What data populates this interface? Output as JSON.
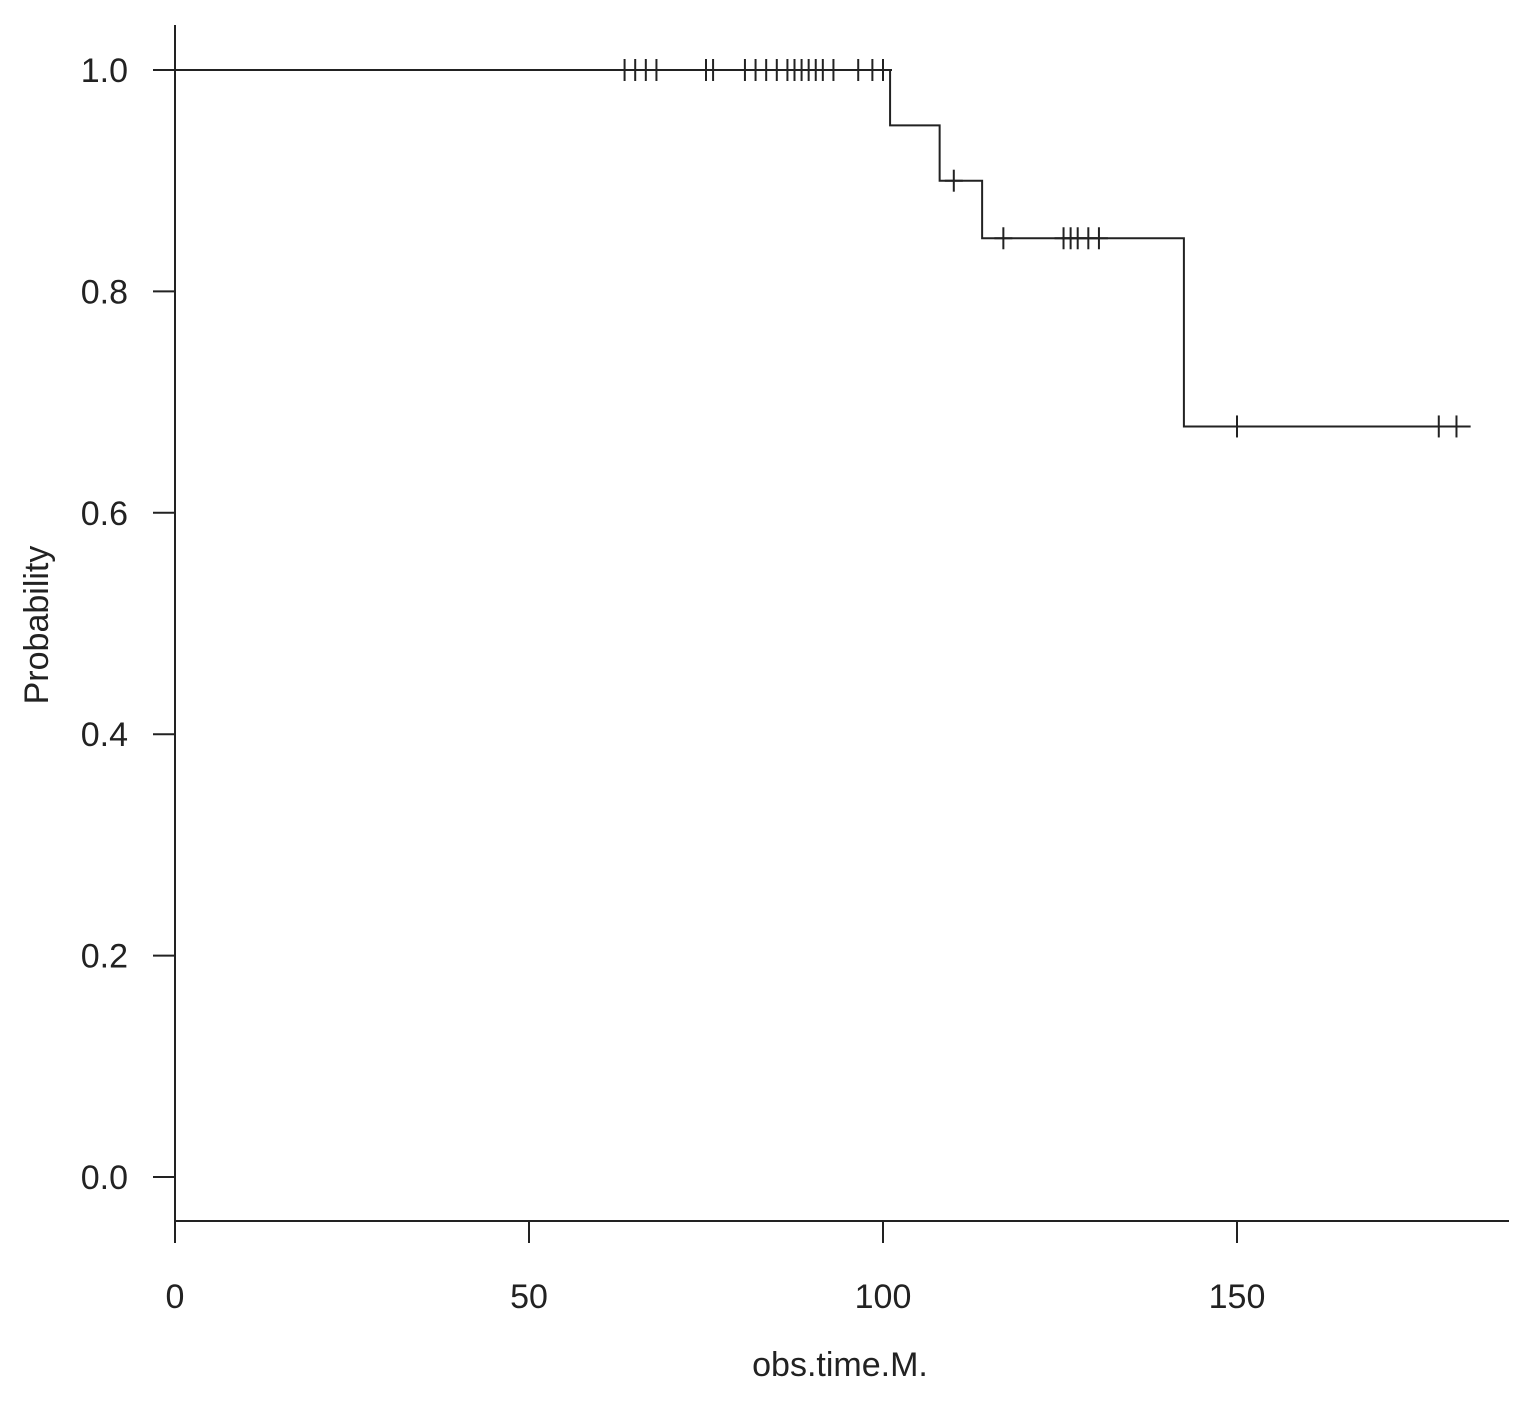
{
  "chart_data": {
    "type": "line",
    "subtype": "kaplan-meier-step",
    "title": "",
    "xlabel": "obs.time.M.",
    "ylabel": "Probability",
    "xlim": [
      0,
      188
    ],
    "ylim": [
      -0.04,
      1.04
    ],
    "x_ticks": [
      0,
      50,
      100,
      150
    ],
    "x_tick_labels": [
      "0",
      "50",
      "100",
      "150"
    ],
    "y_ticks": [
      0.0,
      0.2,
      0.4,
      0.6,
      0.8,
      1.0
    ],
    "y_tick_labels": [
      "0.0",
      "0.2",
      "0.4",
      "0.6",
      "0.8",
      "1.0"
    ],
    "grid": false,
    "legend": "none",
    "line_color": "#222222",
    "series": [
      {
        "steps": [
          {
            "x": 0,
            "y": 1.0
          },
          {
            "x": 101,
            "y": 0.95
          },
          {
            "x": 108,
            "y": 0.9
          },
          {
            "x": 114,
            "y": 0.848
          },
          {
            "x": 142.5,
            "y": 0.678
          }
        ],
        "end_x": 183,
        "censored": [
          {
            "x": 63.5,
            "y": 1.0
          },
          {
            "x": 65,
            "y": 1.0
          },
          {
            "x": 66.5,
            "y": 1.0
          },
          {
            "x": 68,
            "y": 1.0
          },
          {
            "x": 75,
            "y": 1.0
          },
          {
            "x": 76,
            "y": 1.0
          },
          {
            "x": 80.5,
            "y": 1.0
          },
          {
            "x": 82,
            "y": 1.0
          },
          {
            "x": 83.5,
            "y": 1.0
          },
          {
            "x": 85,
            "y": 1.0
          },
          {
            "x": 86.5,
            "y": 1.0
          },
          {
            "x": 87.5,
            "y": 1.0
          },
          {
            "x": 88.5,
            "y": 1.0
          },
          {
            "x": 89.5,
            "y": 1.0
          },
          {
            "x": 90.5,
            "y": 1.0
          },
          {
            "x": 91.5,
            "y": 1.0
          },
          {
            "x": 93,
            "y": 1.0
          },
          {
            "x": 96.5,
            "y": 1.0
          },
          {
            "x": 98.5,
            "y": 1.0
          },
          {
            "x": 100,
            "y": 1.0
          },
          {
            "x": 110,
            "y": 0.9
          },
          {
            "x": 117,
            "y": 0.848
          },
          {
            "x": 125.5,
            "y": 0.848
          },
          {
            "x": 126.5,
            "y": 0.848
          },
          {
            "x": 127.5,
            "y": 0.848
          },
          {
            "x": 129,
            "y": 0.848
          },
          {
            "x": 130.5,
            "y": 0.848
          },
          {
            "x": 150,
            "y": 0.678
          },
          {
            "x": 178.5,
            "y": 0.678
          },
          {
            "x": 181,
            "y": 0.678
          }
        ]
      }
    ]
  }
}
